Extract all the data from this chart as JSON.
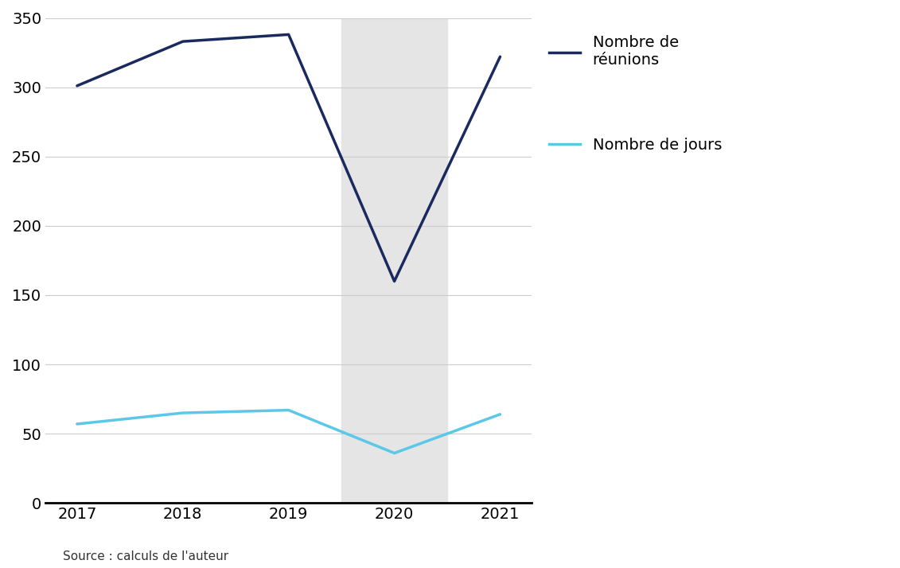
{
  "years": [
    2017,
    2018,
    2019,
    2020,
    2021
  ],
  "reunions": [
    301,
    333,
    338,
    160,
    322
  ],
  "jours": [
    57,
    65,
    67,
    36,
    64
  ],
  "reunions_color": "#1a2a5e",
  "jours_color": "#5bc8e8",
  "shaded_color": "#e5e5e5",
  "background_color": "#ffffff",
  "ylim": [
    0,
    350
  ],
  "yticks": [
    0,
    50,
    100,
    150,
    200,
    250,
    300,
    350
  ],
  "legend_reunions": "Nombre de\nréunions",
  "legend_jours": "Nombre de jours",
  "source_text": "Source : calculs de l'auteur",
  "line_width": 2.5,
  "grid_color": "#cccccc",
  "axis_bottom_color": "#000000",
  "x_shade_start": 2.5,
  "x_shade_end": 3.5,
  "xlim_left": -0.3,
  "xlim_right": 4.3
}
